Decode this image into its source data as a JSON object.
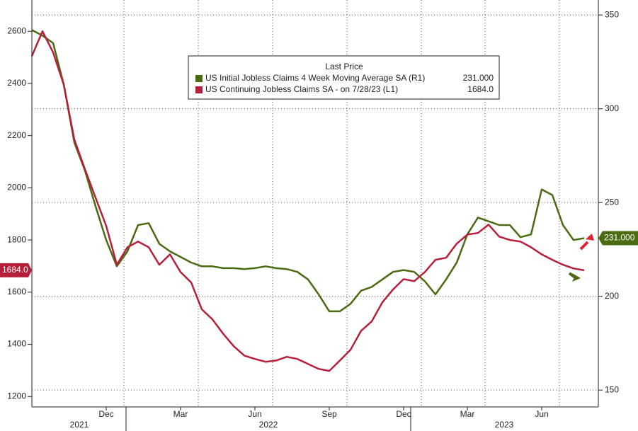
{
  "chart_data": {
    "type": "line",
    "title": "Last Price",
    "categories": [
      null,
      null,
      null,
      null,
      null,
      null,
      null,
      "Dec",
      null,
      null,
      null,
      null,
      null,
      null,
      "Mar",
      null,
      null,
      null,
      null,
      null,
      null,
      "Jun",
      null,
      null,
      null,
      null,
      null,
      null,
      "Sep",
      null,
      null,
      null,
      null,
      null,
      null,
      "Dec",
      null,
      null,
      null,
      null,
      null,
      "Mar",
      null,
      null,
      null,
      null,
      null,
      null,
      "Jun",
      null,
      null,
      null,
      null
    ],
    "x_groups": [
      "2021",
      "2022",
      "2023"
    ],
    "series": [
      {
        "name": "US Initial Jobless Claims 4 Week Moving Average SA  (R1)",
        "color": "#4a6b12",
        "axis": "y2",
        "values": [
          342,
          339,
          335,
          313,
          282,
          267,
          248,
          230,
          216,
          224,
          238,
          239,
          228,
          224,
          221,
          218,
          216,
          216,
          215,
          215,
          214.5,
          215,
          216,
          215,
          214.5,
          213,
          209,
          201,
          192,
          192,
          196,
          203,
          205,
          209,
          213,
          214,
          213,
          208,
          201,
          209,
          218,
          233,
          242,
          240,
          238,
          238,
          231.5,
          233,
          257,
          254,
          238,
          230,
          231
        ],
        "value_labels": [
          null,
          null,
          null,
          null,
          null,
          null,
          null,
          null,
          null,
          null,
          null,
          null,
          null,
          null,
          null,
          null,
          null,
          null,
          null,
          null,
          null,
          null,
          null,
          null,
          null,
          null,
          null,
          null,
          null,
          null,
          null,
          null,
          null,
          null,
          null,
          null,
          null,
          null,
          null,
          null,
          null,
          null,
          null,
          null,
          null,
          null,
          null,
          null,
          null,
          null,
          null,
          null,
          "231.000"
        ]
      },
      {
        "name": "US Continuing Jobless Claims SA -  on 7/28/23  (L1)",
        "color": "#b51f3a",
        "values": [
          2505,
          2600,
          2519,
          2396,
          2185,
          2071,
          1962,
          1854,
          1705,
          1772,
          1794,
          1772,
          1705,
          1745,
          1677,
          1637,
          1534,
          1496,
          1441,
          1393,
          1357,
          1344,
          1333,
          1338,
          1352,
          1344,
          1325,
          1306,
          1298,
          1338,
          1379,
          1452,
          1488,
          1561,
          1610,
          1650,
          1642,
          1677,
          1724,
          1732,
          1786,
          1821,
          1827,
          1859,
          1813,
          1800,
          1794,
          1772,
          1745,
          1724,
          1705,
          1691,
          1684
        ],
        "value_labels": [
          null,
          null,
          null,
          null,
          null,
          null,
          null,
          null,
          null,
          null,
          null,
          null,
          null,
          null,
          null,
          null,
          null,
          null,
          null,
          null,
          null,
          null,
          null,
          null,
          null,
          null,
          null,
          null,
          null,
          null,
          null,
          null,
          null,
          null,
          null,
          null,
          null,
          null,
          null,
          null,
          null,
          null,
          null,
          null,
          null,
          null,
          null,
          null,
          null,
          null,
          null,
          null,
          "1684.0"
        ]
      }
    ],
    "ylim": [
      1160,
      2720
    ],
    "yticks": [
      1200,
      1400,
      1600,
      1800,
      2000,
      2200,
      2400,
      2600
    ],
    "y2lim": [
      141,
      358
    ],
    "y2ticks": [
      150,
      200,
      250,
      300,
      350
    ],
    "grid": true
  }
}
